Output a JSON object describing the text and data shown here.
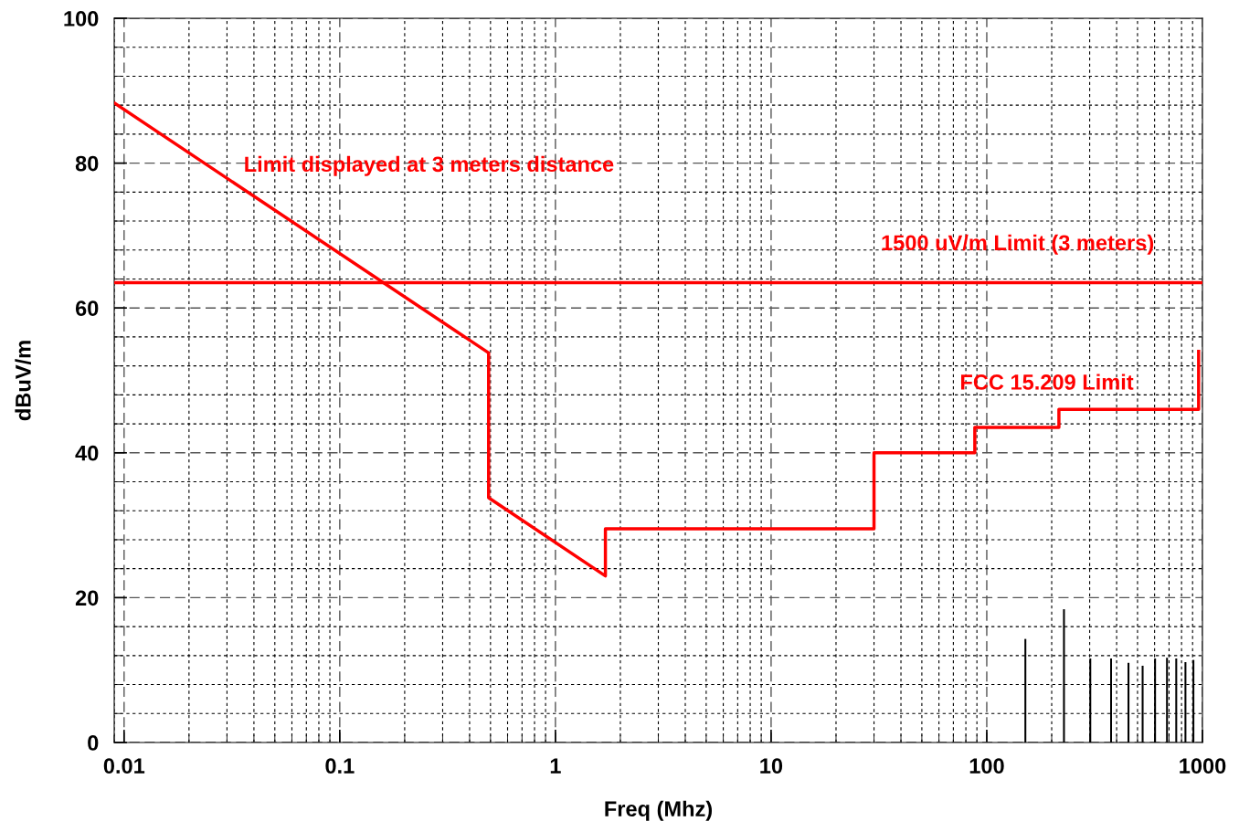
{
  "chart_data": {
    "type": "line",
    "xlabel": "Freq (Mhz)",
    "ylabel": "dBuV/m",
    "log": "x",
    "xlim": [
      0.009,
      1000
    ],
    "xticks": [
      0.01,
      0.1,
      1,
      10,
      100,
      1000
    ],
    "ylim": [
      0,
      100
    ],
    "yticks": [
      0,
      20,
      40,
      60,
      80,
      100
    ],
    "grid": true,
    "legend": false,
    "marker": "none",
    "line_style": "solid",
    "series": [
      {
        "color": "#ff0000",
        "x": [
          0.009,
          0.49,
          0.49,
          1.705,
          1.705,
          30,
          30,
          88,
          88,
          216,
          216,
          960,
          960
        ],
        "values": [
          88.3,
          53.8,
          33.8,
          23,
          29.5,
          29.5,
          40,
          40,
          43.5,
          43.5,
          46,
          46,
          54
        ]
      },
      {
        "type": "bar",
        "color": "#000000",
        "x": [
          151,
          228,
          302,
          377,
          454,
          528,
          603,
          685,
          756,
          834,
          908
        ],
        "values": [
          14.3,
          18.4,
          11.6,
          11.6,
          11.0,
          10.6,
          11.6,
          11.7,
          11.6,
          11.1,
          11.4
        ]
      }
    ],
    "ref_lines": [
      {
        "axis": "y",
        "value": 63.5,
        "label": "1500 uV/m Limit (3 meters)",
        "color": "#ff0000",
        "line_style": "solid"
      }
    ],
    "annotations": [
      "Limit displayed at 3 meters distance",
      "FCC 15.209 Limit"
    ]
  }
}
